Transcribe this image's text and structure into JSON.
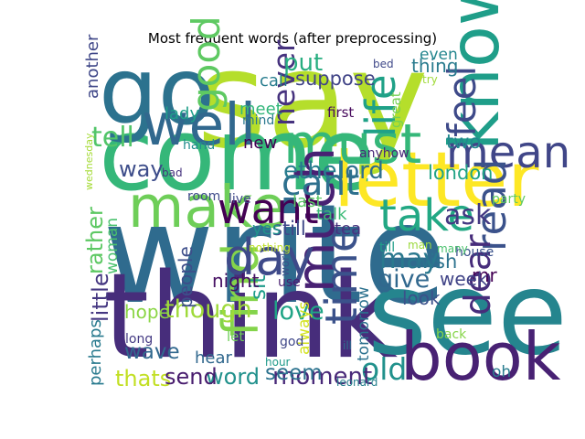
{
  "chart_data": {
    "type": "wordcloud",
    "title": "Most frequent words (after preprocessing)",
    "colormap": "viridis",
    "words": [
      {
        "text": "write",
        "size": 1.0
      },
      {
        "text": "say",
        "size": 0.98
      },
      {
        "text": "think",
        "size": 0.85
      },
      {
        "text": "see",
        "size": 0.83
      },
      {
        "text": "come",
        "size": 0.73
      },
      {
        "text": "go",
        "size": 0.68
      },
      {
        "text": "letter",
        "size": 0.55
      },
      {
        "text": "know",
        "size": 0.5
      },
      {
        "text": "book",
        "size": 0.48
      },
      {
        "text": "make",
        "size": 0.42
      },
      {
        "text": "well",
        "size": 0.42
      },
      {
        "text": "must",
        "size": 0.4
      },
      {
        "text": "much",
        "size": 0.38
      },
      {
        "text": "find",
        "size": 0.36
      },
      {
        "text": "day",
        "size": 0.36
      },
      {
        "text": "mean",
        "size": 0.32
      },
      {
        "text": "take",
        "size": 0.32
      },
      {
        "text": "time",
        "size": 0.32
      },
      {
        "text": "want",
        "size": 0.3
      },
      {
        "text": "read",
        "size": 0.3
      },
      {
        "text": "life",
        "size": 0.3
      },
      {
        "text": "good",
        "size": 0.28
      },
      {
        "text": "feel",
        "size": 0.28
      },
      {
        "text": "cant",
        "size": 0.26
      },
      {
        "text": "dear",
        "size": 0.26
      },
      {
        "text": "old",
        "size": 0.22
      },
      {
        "text": "never",
        "size": 0.22
      },
      {
        "text": "ask",
        "size": 0.2
      },
      {
        "text": "may",
        "size": 0.2
      },
      {
        "text": "tell",
        "size": 0.2
      },
      {
        "text": "give",
        "size": 0.18
      },
      {
        "text": "love",
        "size": 0.18
      },
      {
        "text": "though",
        "size": 0.18
      },
      {
        "text": "moment",
        "size": 0.17
      },
      {
        "text": "put",
        "size": 0.17
      },
      {
        "text": "lord",
        "size": 0.17
      },
      {
        "text": "ethel",
        "size": 0.17
      },
      {
        "text": "way",
        "size": 0.16
      },
      {
        "text": "rather",
        "size": 0.16
      },
      {
        "text": "little",
        "size": 0.16
      },
      {
        "text": "word",
        "size": 0.16
      },
      {
        "text": "thats",
        "size": 0.16
      },
      {
        "text": "send",
        "size": 0.16
      },
      {
        "text": "seem",
        "size": 0.15
      },
      {
        "text": "sit",
        "size": 0.15
      },
      {
        "text": "wave",
        "size": 0.15
      },
      {
        "text": "suppose",
        "size": 0.14
      },
      {
        "text": "two",
        "size": 0.14
      },
      {
        "text": "london",
        "size": 0.14
      },
      {
        "text": "still",
        "size": 0.14
      },
      {
        "text": "wish",
        "size": 0.14
      },
      {
        "text": "thing",
        "size": 0.13
      },
      {
        "text": "mr",
        "size": 0.13
      },
      {
        "text": "week",
        "size": 0.13
      },
      {
        "text": "look",
        "size": 0.13
      },
      {
        "text": "night",
        "size": 0.13
      },
      {
        "text": "people",
        "size": 0.13
      },
      {
        "text": "hope",
        "size": 0.13
      },
      {
        "text": "perhaps",
        "size": 0.12
      },
      {
        "text": "hear",
        "size": 0.12
      },
      {
        "text": "another",
        "size": 0.12
      },
      {
        "text": "call",
        "size": 0.12
      },
      {
        "text": "meet",
        "size": 0.12
      },
      {
        "text": "lady",
        "size": 0.12
      },
      {
        "text": "new",
        "size": 0.12
      },
      {
        "text": "last",
        "size": 0.12
      },
      {
        "text": "talk",
        "size": 0.12
      },
      {
        "text": "tea",
        "size": 0.12
      },
      {
        "text": "yes",
        "size": 0.12
      },
      {
        "text": "woman",
        "size": 0.11
      },
      {
        "text": "tomorrow",
        "size": 0.11
      },
      {
        "text": "always",
        "size": 0.11
      },
      {
        "text": "even",
        "size": 0.11
      },
      {
        "text": "oh",
        "size": 0.11
      },
      {
        "text": "great",
        "size": 0.1
      },
      {
        "text": "first",
        "size": 0.1
      },
      {
        "text": "let",
        "size": 0.1
      },
      {
        "text": "mind",
        "size": 0.09
      },
      {
        "text": "anyhow",
        "size": 0.09
      },
      {
        "text": "hand",
        "size": 0.09
      },
      {
        "text": "room",
        "size": 0.09
      },
      {
        "text": "live",
        "size": 0.09
      },
      {
        "text": "party",
        "size": 0.09
      },
      {
        "text": "house",
        "size": 0.09
      },
      {
        "text": "till",
        "size": 0.09
      },
      {
        "text": "god",
        "size": 0.09
      },
      {
        "text": "use",
        "size": 0.09
      },
      {
        "text": "long",
        "size": 0.09
      },
      {
        "text": "back",
        "size": 0.09
      },
      {
        "text": "bad",
        "size": 0.08
      },
      {
        "text": "try",
        "size": 0.08
      },
      {
        "text": "bed",
        "size": 0.08
      },
      {
        "text": "hour",
        "size": 0.08
      },
      {
        "text": "ill",
        "size": 0.08
      },
      {
        "text": "work",
        "size": 0.08
      },
      {
        "text": "nothing",
        "size": 0.08
      },
      {
        "text": "many",
        "size": 0.08
      },
      {
        "text": "man",
        "size": 0.08
      },
      {
        "text": "leonard",
        "size": 0.08
      },
      {
        "text": "wednesday",
        "size": 0.07
      }
    ]
  }
}
